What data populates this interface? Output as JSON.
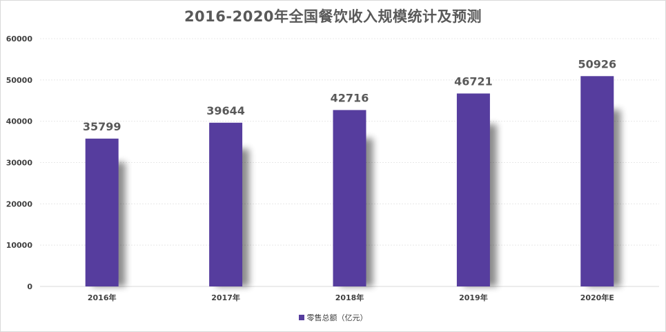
{
  "colors": {
    "bar": "#563d9e",
    "grid": "#e8e8e8",
    "text": "#595959",
    "axis": "#d9d9d9"
  },
  "chart_data": {
    "type": "bar",
    "title": "2016-2020年全国餐饮收入规模统计及预测",
    "categories": [
      "2016年",
      "2017年",
      "2018年",
      "2019年",
      "2020年E"
    ],
    "series": [
      {
        "name": "零售总额（亿元）",
        "values": [
          35799,
          39644,
          42716,
          46721,
          50926
        ]
      }
    ],
    "ylim": [
      0,
      60000
    ],
    "yticks": [
      0,
      10000,
      20000,
      30000,
      40000,
      50000,
      60000
    ],
    "xlabel": "",
    "ylabel": "",
    "grid": true,
    "legend": "bottom"
  }
}
